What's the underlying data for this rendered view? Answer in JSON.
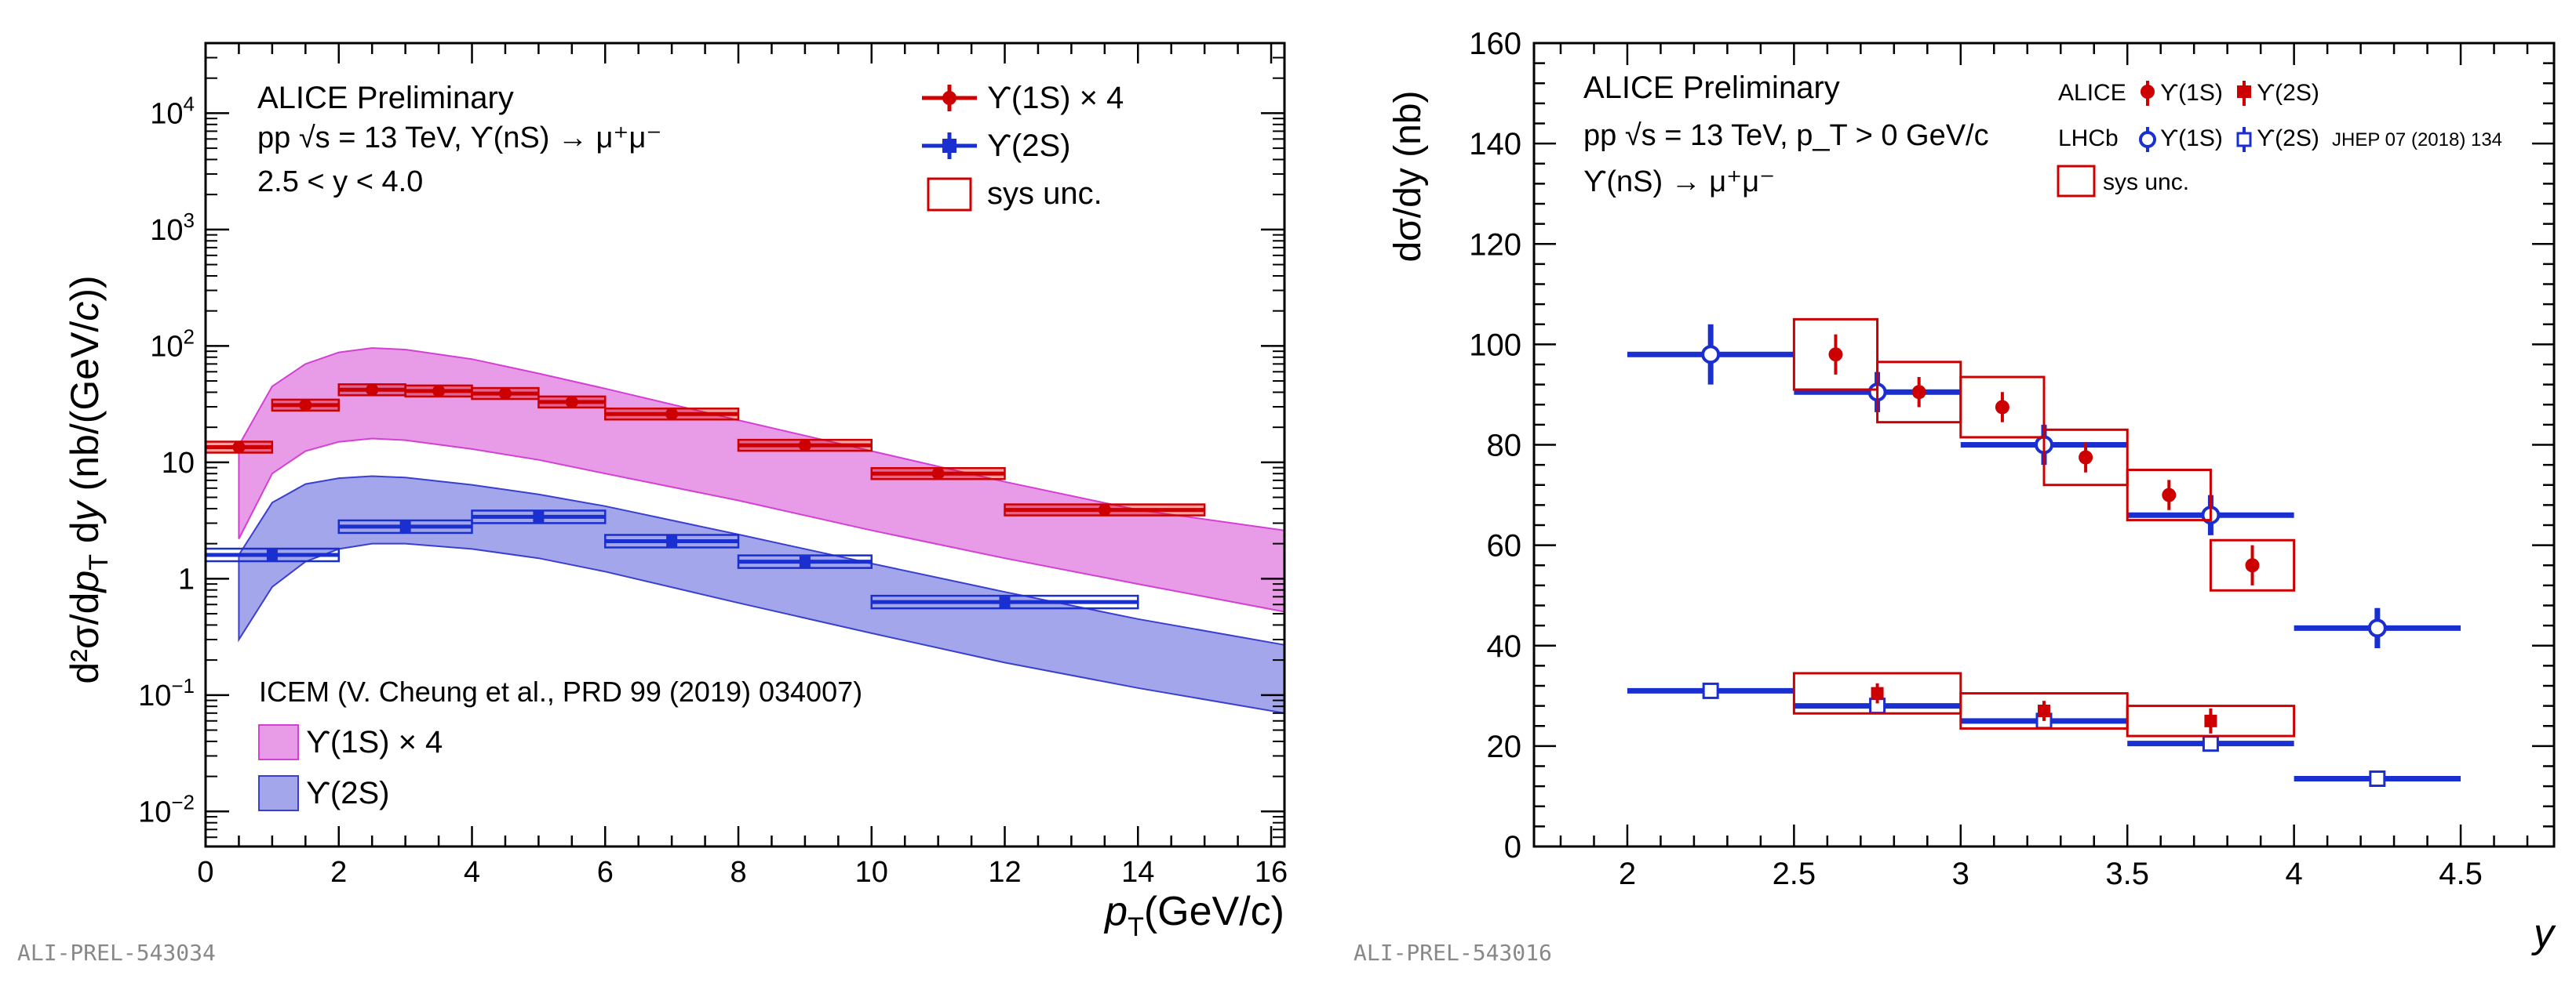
{
  "chart_data": [
    {
      "type": "scatter",
      "panel": "left",
      "yscale": "log",
      "xlabel_main": "p",
      "xlabel_sub": "T",
      "xlabel_rest": "(GeV/c)",
      "ylabel": "d²σ/dp_T dy (nb/(GeV/c))",
      "xlim": [
        0,
        16.2
      ],
      "ylim": [
        0.005,
        40000
      ],
      "x_ticks": [
        "0",
        "2",
        "4",
        "6",
        "8",
        "10",
        "12",
        "14",
        "16"
      ],
      "y_ticks": [
        "10^-2",
        "10^-1",
        "1",
        "10",
        "10^2",
        "10^3",
        "10^4"
      ],
      "annotations": {
        "prelim": "ALICE Preliminary",
        "line2": "pp √s = 13 TeV, ϒ(nS) → μ⁺μ⁻",
        "line3": "2.5 < y < 4.0",
        "model": "ICEM (V. Cheung et al., PRD 99 (2019) 034007)",
        "tag": "ALI-PREL-543034"
      },
      "legend": {
        "y1s": "ϒ(1S) × 4",
        "y2s": "ϒ(2S)",
        "sys": "sys unc.",
        "band1": "ϒ(1S) × 4",
        "band2": "ϒ(2S)"
      },
      "series": [
        {
          "name": "ϒ(1S) × 4",
          "color": "#cc0000",
          "points": [
            {
              "x": 0.5,
              "xlo": 0,
              "xhi": 1,
              "y": 13.5
            },
            {
              "x": 1.5,
              "xlo": 1,
              "xhi": 2,
              "y": 31
            },
            {
              "x": 2.5,
              "xlo": 2,
              "xhi": 3,
              "y": 42
            },
            {
              "x": 3.5,
              "xlo": 3,
              "xhi": 4,
              "y": 41
            },
            {
              "x": 4.5,
              "xlo": 4,
              "xhi": 5,
              "y": 39
            },
            {
              "x": 5.5,
              "xlo": 5,
              "xhi": 6,
              "y": 33
            },
            {
              "x": 7,
              "xlo": 6,
              "xhi": 8,
              "y": 26
            },
            {
              "x": 9,
              "xlo": 8,
              "xhi": 10,
              "y": 14
            },
            {
              "x": 11,
              "xlo": 10,
              "xhi": 12,
              "y": 8
            },
            {
              "x": 13.5,
              "xlo": 12,
              "xhi": 15,
              "y": 3.9
            }
          ]
        },
        {
          "name": "ϒ(2S)",
          "color": "#1a2fcf",
          "points": [
            {
              "x": 1,
              "xlo": 0,
              "xhi": 2,
              "y": 1.6
            },
            {
              "x": 3,
              "xlo": 2,
              "xhi": 4,
              "y": 2.8
            },
            {
              "x": 5,
              "xlo": 4,
              "xhi": 6,
              "y": 3.4
            },
            {
              "x": 7,
              "xlo": 6,
              "xhi": 8,
              "y": 2.1
            },
            {
              "x": 9,
              "xlo": 8,
              "xhi": 10,
              "y": 1.4
            },
            {
              "x": 12,
              "xlo": 10,
              "xhi": 14,
              "y": 0.63
            }
          ]
        }
      ],
      "bands": [
        {
          "name": "ICEM ϒ(1S) × 4",
          "fill": "#e89be6",
          "stroke": "#d43fd4",
          "x": [
            0.5,
            1,
            1.5,
            2,
            2.5,
            3,
            4,
            5,
            6,
            8,
            10,
            12,
            14,
            16.2
          ],
          "lo": [
            2.2,
            8,
            12.5,
            15,
            16,
            15.5,
            13,
            10.5,
            8,
            4.7,
            2.6,
            1.5,
            0.9,
            0.52
          ],
          "hi": [
            14,
            45,
            70,
            88,
            96,
            93,
            77,
            58,
            43,
            23,
            12.5,
            6.8,
            3.9,
            2.6
          ]
        },
        {
          "name": "ICEM ϒ(2S)",
          "fill": "#a3a6ea",
          "stroke": "#3b3fd0",
          "x": [
            0.5,
            1,
            1.5,
            2,
            2.5,
            3,
            4,
            5,
            6,
            8,
            10,
            12,
            14,
            16.2
          ],
          "lo": [
            0.3,
            0.85,
            1.4,
            1.8,
            2.0,
            2.0,
            1.8,
            1.5,
            1.15,
            0.62,
            0.34,
            0.19,
            0.115,
            0.07
          ],
          "hi": [
            1.6,
            4.5,
            6.5,
            7.3,
            7.6,
            7.4,
            6.4,
            5.3,
            4.2,
            2.4,
            1.35,
            0.77,
            0.45,
            0.27
          ]
        }
      ]
    },
    {
      "type": "scatter",
      "panel": "right",
      "yscale": "linear",
      "xlabel": "y",
      "ylabel": "dσ/dy (nb)",
      "xlim": [
        1.72,
        4.78
      ],
      "ylim": [
        0,
        160
      ],
      "x_ticks": [
        "2",
        "2.5",
        "3",
        "3.5",
        "4",
        "4.5"
      ],
      "y_ticks": [
        "0",
        "20",
        "40",
        "60",
        "80",
        "100",
        "120",
        "140",
        "160"
      ],
      "annotations": {
        "prelim": "ALICE Preliminary",
        "line2": "pp √s = 13 TeV, p_T > 0 GeV/c",
        "line3": "ϒ(nS) → μ⁺μ⁻",
        "tag": "ALI-PREL-543016"
      },
      "legend": {
        "alice": "ALICE",
        "lhcb": "LHCb",
        "y1s": "ϒ(1S)",
        "y2s": "ϒ(2S)",
        "ref": "JHEP 07 (2018) 134",
        "sys": "sys unc."
      },
      "series": [
        {
          "name": "LHCb ϒ(1S)",
          "color": "#1a2fcf",
          "marker": "open-circle",
          "points": [
            {
              "x": 2.25,
              "xlo": 2,
              "xhi": 2.5,
              "y": 98,
              "err": 6
            },
            {
              "x": 2.75,
              "xlo": 2.5,
              "xhi": 3,
              "y": 90.5,
              "err": 4
            },
            {
              "x": 3.25,
              "xlo": 3,
              "xhi": 3.5,
              "y": 80,
              "err": 4
            },
            {
              "x": 3.75,
              "xlo": 3.5,
              "xhi": 4,
              "y": 66,
              "err": 4
            },
            {
              "x": 4.25,
              "xlo": 4,
              "xhi": 4.5,
              "y": 43.5,
              "err": 4
            }
          ]
        },
        {
          "name": "LHCb ϒ(2S)",
          "color": "#1a2fcf",
          "marker": "open-square",
          "points": [
            {
              "x": 2.25,
              "xlo": 2,
              "xhi": 2.5,
              "y": 31,
              "err": 1.5
            },
            {
              "x": 2.75,
              "xlo": 2.5,
              "xhi": 3,
              "y": 28,
              "err": 1.5
            },
            {
              "x": 3.25,
              "xlo": 3,
              "xhi": 3.5,
              "y": 25,
              "err": 1.5
            },
            {
              "x": 3.75,
              "xlo": 3.5,
              "xhi": 4,
              "y": 20.5,
              "err": 1.5
            },
            {
              "x": 4.25,
              "xlo": 4,
              "xhi": 4.5,
              "y": 13.5,
              "err": 1
            }
          ]
        },
        {
          "name": "ALICE ϒ(1S)",
          "color": "#cc0000",
          "marker": "circle",
          "points": [
            {
              "x": 2.625,
              "y": 98,
              "err": 4,
              "sys": 7
            },
            {
              "x": 2.875,
              "y": 90.5,
              "err": 3,
              "sys": 6
            },
            {
              "x": 3.125,
              "y": 87.5,
              "err": 3,
              "sys": 6
            },
            {
              "x": 3.375,
              "y": 77.5,
              "err": 3,
              "sys": 5.5
            },
            {
              "x": 3.625,
              "y": 70,
              "err": 3,
              "sys": 5
            },
            {
              "x": 3.875,
              "y": 56,
              "err": 4,
              "sys": 5
            }
          ]
        },
        {
          "name": "ALICE ϒ(2S)",
          "color": "#cc0000",
          "marker": "square",
          "points": [
            {
              "x": 2.75,
              "y": 30.5,
              "err": 2,
              "sys": 4
            },
            {
              "x": 3.25,
              "y": 27,
              "err": 2,
              "sys": 3.5
            },
            {
              "x": 3.75,
              "y": 25,
              "err": 2.5,
              "sys": 3
            }
          ]
        }
      ],
      "sys_boxes": [
        {
          "xlo": 2.5,
          "xhi": 2.75,
          "y": 98,
          "h": 7
        },
        {
          "xlo": 2.75,
          "xhi": 3.0,
          "y": 90.5,
          "h": 6
        },
        {
          "xlo": 3.0,
          "xhi": 3.25,
          "y": 87.5,
          "h": 6
        },
        {
          "xlo": 3.25,
          "xhi": 3.5,
          "y": 77.5,
          "h": 5.5
        },
        {
          "xlo": 3.5,
          "xhi": 3.75,
          "y": 70,
          "h": 5
        },
        {
          "xlo": 3.75,
          "xhi": 4.0,
          "y": 56,
          "h": 5
        },
        {
          "xlo": 2.5,
          "xhi": 3.0,
          "y": 30.5,
          "h": 4
        },
        {
          "xlo": 3.0,
          "xhi": 3.5,
          "y": 27,
          "h": 3.5
        },
        {
          "xlo": 3.5,
          "xhi": 4.0,
          "y": 25,
          "h": 3
        }
      ]
    }
  ]
}
